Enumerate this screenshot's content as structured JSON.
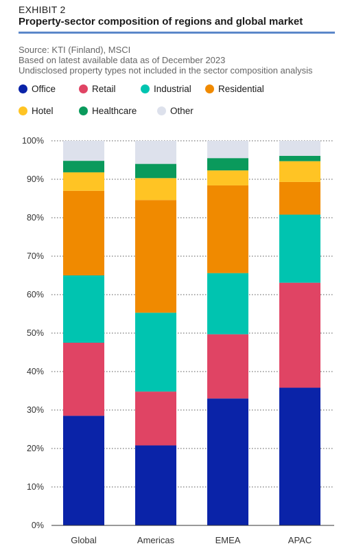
{
  "header": {
    "exhibit": "EXHIBIT 2",
    "title": "Property-sector composition of regions and global market",
    "notes": [
      "Source: KTI (Finland), MSCI",
      "Based on latest available data as of December 2023",
      "Undisclosed property types not included in the sector composition analysis"
    ]
  },
  "colors": {
    "rule": "#5b87c9",
    "Office": "#0a23a8",
    "Retail": "#e04464",
    "Industrial": "#00c4b0",
    "Residential": "#f08a00",
    "Hotel": "#ffc424",
    "Healthcare": "#0a9a5c",
    "Other": "#dde1ec"
  },
  "chart_data": {
    "type": "bar",
    "stacked": true,
    "categories": [
      "Global",
      "Americas",
      "EMEA",
      "APAC"
    ],
    "series": [
      {
        "name": "Office",
        "values": [
          28.5,
          20.8,
          33.0,
          35.8
        ]
      },
      {
        "name": "Retail",
        "values": [
          19.0,
          14.0,
          16.7,
          27.3
        ]
      },
      {
        "name": "Industrial",
        "values": [
          17.5,
          20.5,
          15.9,
          17.7
        ]
      },
      {
        "name": "Residential",
        "values": [
          22.0,
          29.3,
          22.8,
          8.5
        ]
      },
      {
        "name": "Hotel",
        "values": [
          4.8,
          5.7,
          3.9,
          5.4
        ]
      },
      {
        "name": "Healthcare",
        "values": [
          3.0,
          3.7,
          3.2,
          1.4
        ]
      },
      {
        "name": "Other",
        "values": [
          5.2,
          6.0,
          4.5,
          3.9
        ]
      }
    ],
    "ylim": [
      0,
      100
    ],
    "yticks": [
      "0%",
      "10%",
      "20%",
      "30%",
      "40%",
      "50%",
      "60%",
      "70%",
      "80%",
      "90%",
      "100%"
    ],
    "grid": true,
    "legend_position": "top"
  }
}
